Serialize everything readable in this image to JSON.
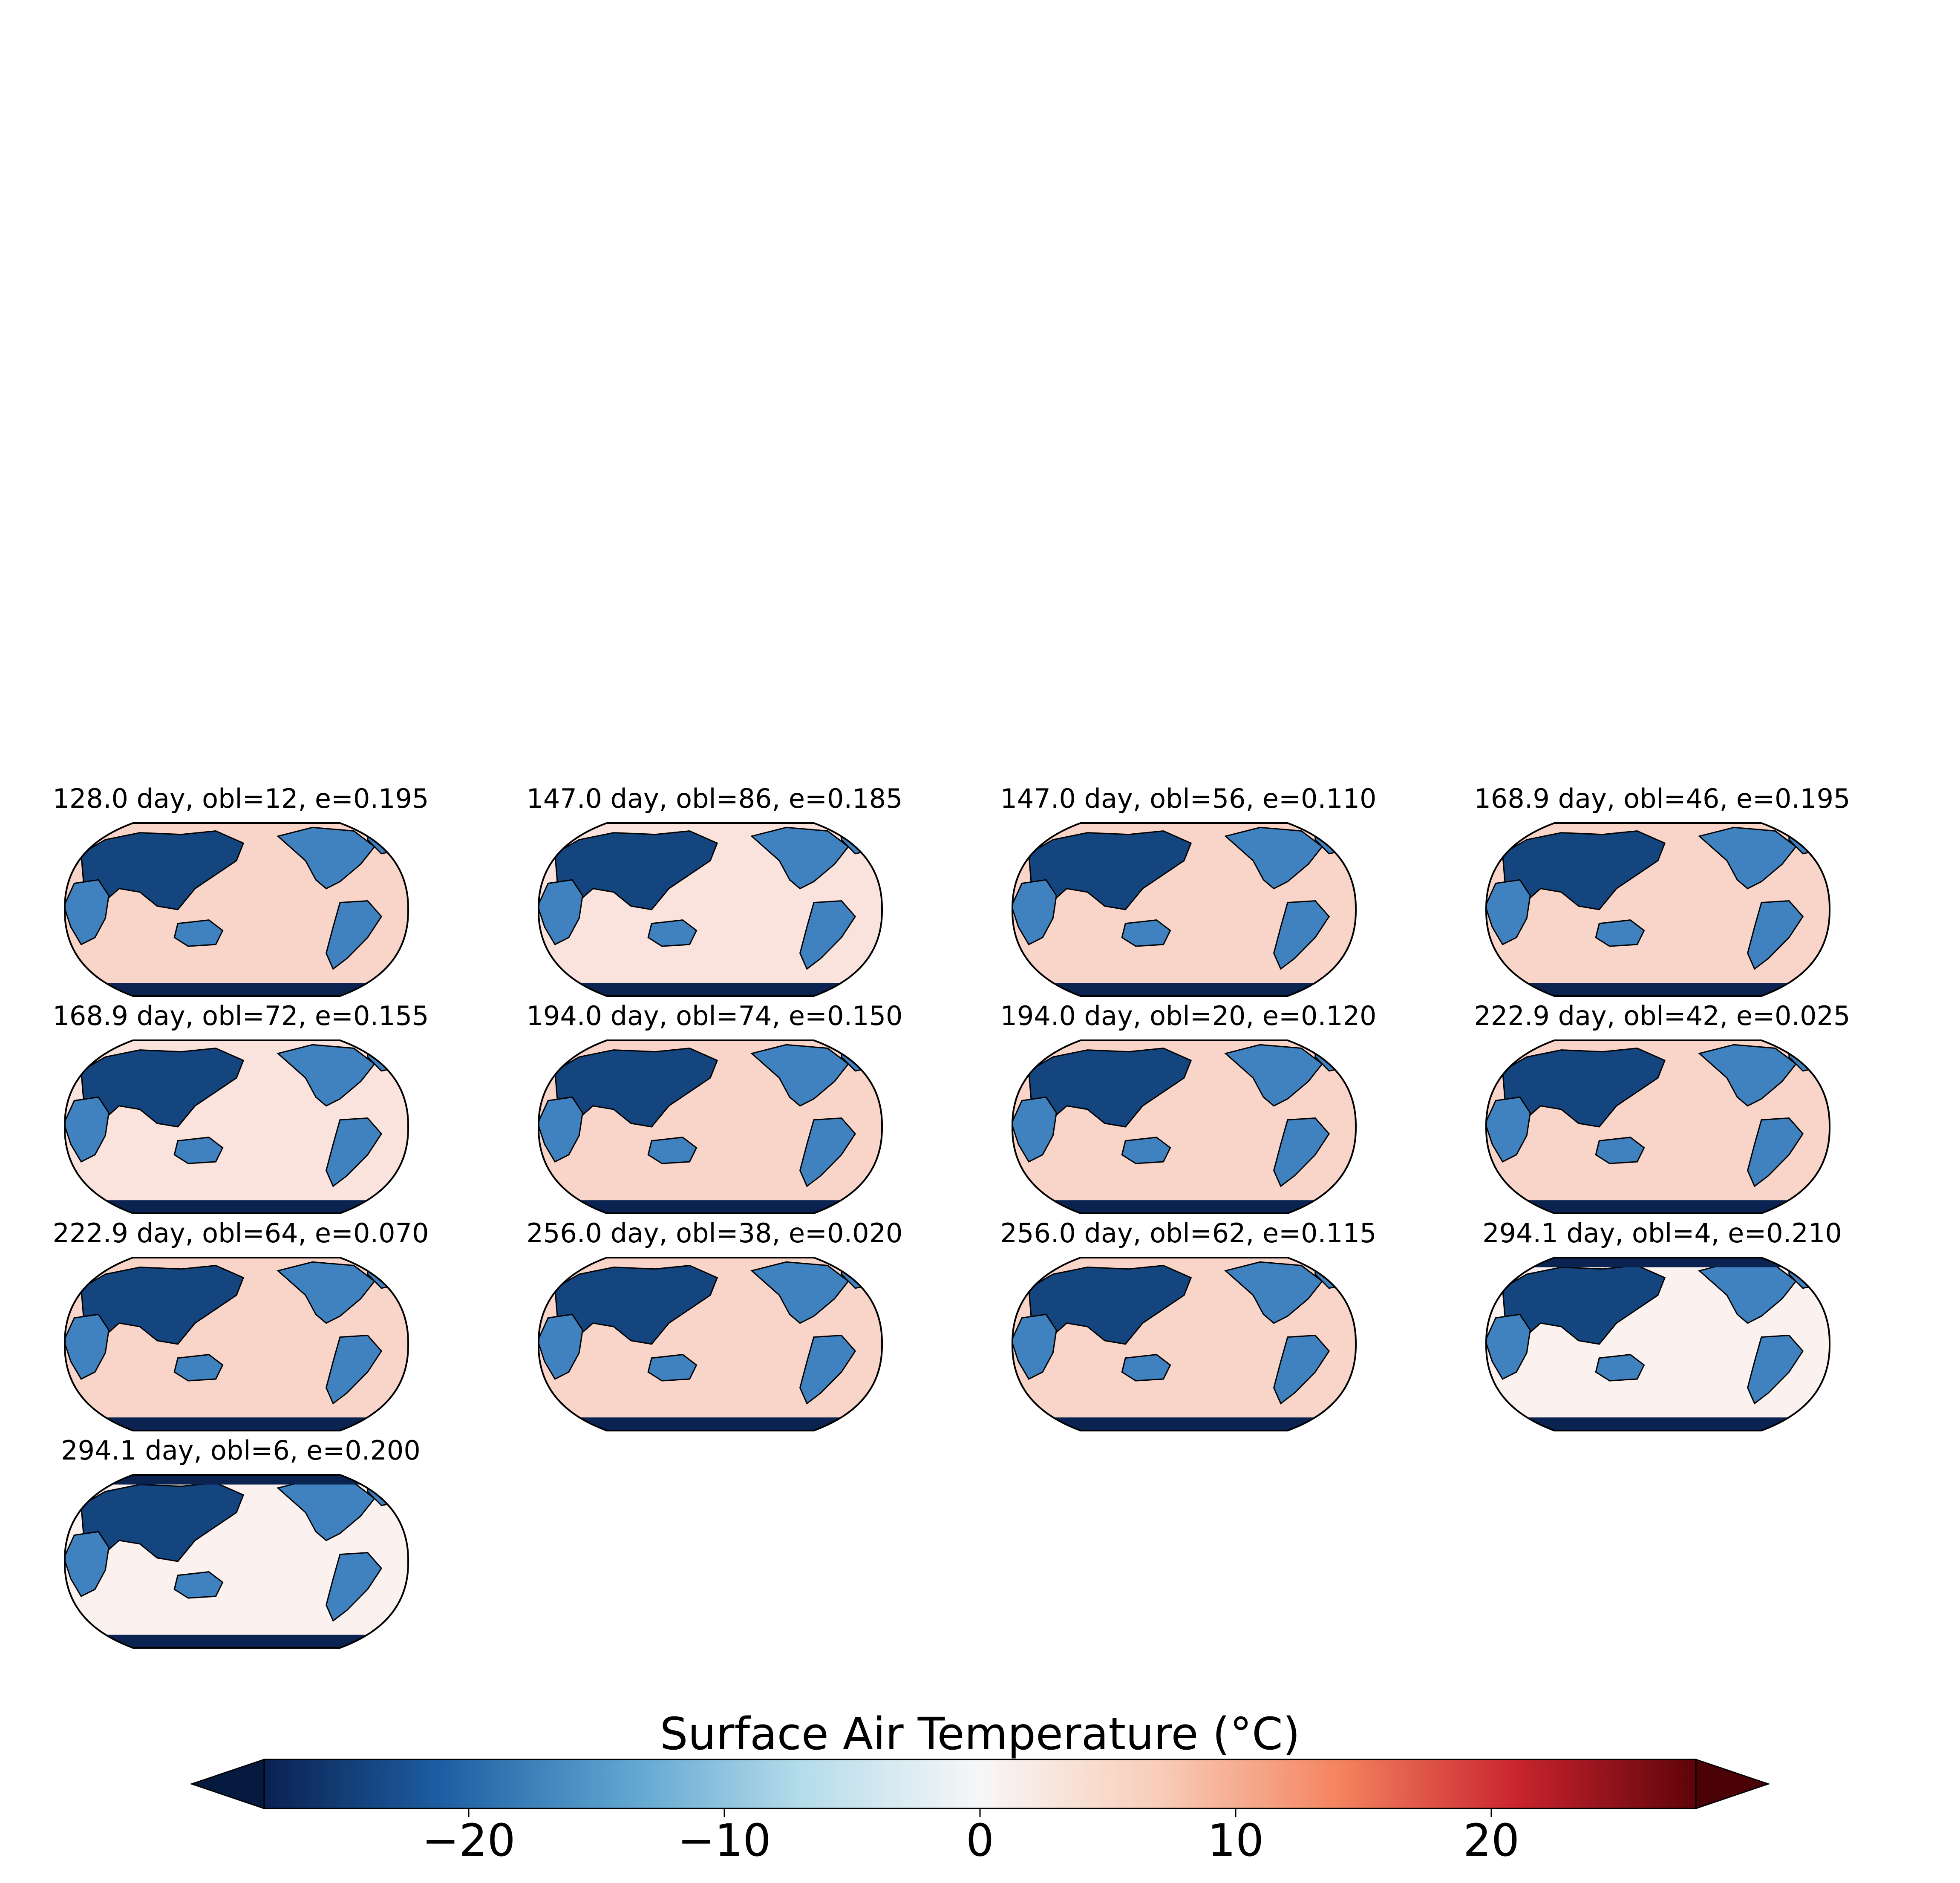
{
  "figure": {
    "panels": [
      {
        "title": "128.0 day, obl=12, e=0.195",
        "style": "warm"
      },
      {
        "title": "147.0 day, obl=86, e=0.185",
        "style": "warm-light"
      },
      {
        "title": "147.0 day, obl=56, e=0.110",
        "style": "warm"
      },
      {
        "title": "168.9 day, obl=46, e=0.195",
        "style": "warm"
      },
      {
        "title": "168.9 day, obl=72, e=0.155",
        "style": "warm-light"
      },
      {
        "title": "194.0 day, obl=74, e=0.150",
        "style": "warm"
      },
      {
        "title": "194.0 day, obl=20, e=0.120",
        "style": "warm"
      },
      {
        "title": "222.9 day, obl=42, e=0.025",
        "style": "warm"
      },
      {
        "title": "222.9 day, obl=64, e=0.070",
        "style": "warm"
      },
      {
        "title": "256.0 day, obl=38, e=0.020",
        "style": "warm"
      },
      {
        "title": "256.0 day, obl=62, e=0.115",
        "style": "warm"
      },
      {
        "title": "294.1 day, obl=4, e=0.210",
        "style": "cool"
      },
      {
        "title": "294.1 day, obl=6, e=0.200",
        "style": "cool"
      }
    ],
    "colorbar": {
      "label": "Surface Air Temperature (°C)",
      "vmin": -28,
      "vmax": 28,
      "ticks": [
        {
          "value": -20,
          "label": "−20"
        },
        {
          "value": -10,
          "label": "−10"
        },
        {
          "value": 0,
          "label": "0"
        },
        {
          "value": 10,
          "label": "10"
        },
        {
          "value": 20,
          "label": "20"
        }
      ],
      "extend": "both",
      "colormap": "RdBu_r",
      "colors": [
        "#0a2151",
        "#1d5fa3",
        "#5ca3cf",
        "#b4dcea",
        "#f7f7f7",
        "#f8cdb8",
        "#f4845f",
        "#c9242e",
        "#5e0309"
      ]
    },
    "map_colors": {
      "ocean_warm": "#f8d4c9",
      "ocean_warm_light": "#fae3dc",
      "ocean_cool": "#fbf1ee",
      "land": "#3f82bf",
      "land_dark": "#14457f",
      "polar": "#0b2350",
      "coast": "#000000"
    }
  }
}
